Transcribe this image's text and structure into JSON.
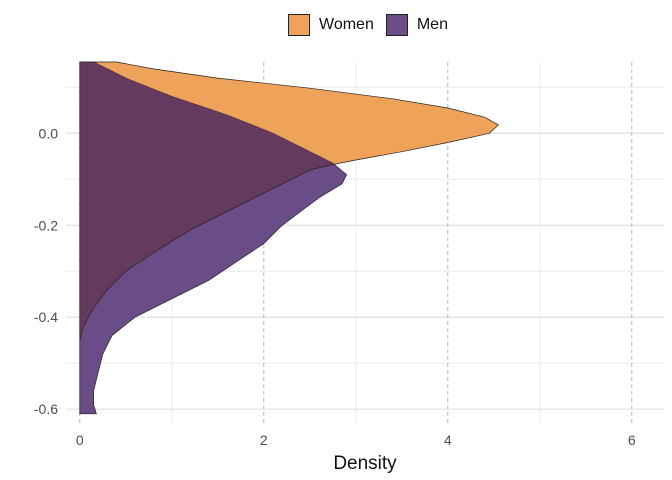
{
  "chart_data": {
    "type": "area",
    "orientation": "horizontal-density",
    "title": "",
    "xlabel": "Density",
    "ylabel": "",
    "xlim": [
      -0.15,
      6.35
    ],
    "ylim": [
      -0.63,
      0.155
    ],
    "x_ticks": [
      0,
      2,
      4,
      6
    ],
    "x_tick_labels": [
      "0",
      "2",
      "4",
      "6"
    ],
    "y_ticks": [
      0.0,
      -0.2,
      -0.4,
      -0.6
    ],
    "y_tick_labels": [
      "0.0",
      "-0.2",
      "-0.4",
      "-0.6"
    ],
    "grid": true,
    "grid_x_dashed": true,
    "legend_position": "top",
    "series": [
      {
        "name": "Women",
        "color": "#EFA35A",
        "overlap_color": "#663A5E",
        "points": [
          [
            0.0,
            0.155
          ],
          [
            0.4,
            0.155
          ],
          [
            0.8,
            0.14
          ],
          [
            1.5,
            0.12
          ],
          [
            2.5,
            0.098
          ],
          [
            3.4,
            0.075
          ],
          [
            4.0,
            0.055
          ],
          [
            4.4,
            0.035
          ],
          [
            4.55,
            0.018
          ],
          [
            4.45,
            0.0
          ],
          [
            4.0,
            -0.02
          ],
          [
            3.5,
            -0.04
          ],
          [
            3.0,
            -0.058
          ],
          [
            2.7,
            -0.07
          ],
          [
            2.5,
            -0.08
          ],
          [
            2.3,
            -0.1
          ],
          [
            2.0,
            -0.13
          ],
          [
            1.6,
            -0.17
          ],
          [
            1.2,
            -0.21
          ],
          [
            0.8,
            -0.26
          ],
          [
            0.5,
            -0.3
          ],
          [
            0.3,
            -0.34
          ],
          [
            0.15,
            -0.38
          ],
          [
            0.04,
            -0.42
          ],
          [
            0.0,
            -0.45
          ]
        ]
      },
      {
        "name": "Men",
        "color": "#6A4D86",
        "points": [
          [
            0.0,
            0.155
          ],
          [
            0.15,
            0.155
          ],
          [
            0.5,
            0.12
          ],
          [
            1.0,
            0.08
          ],
          [
            1.6,
            0.04
          ],
          [
            2.1,
            0.0
          ],
          [
            2.5,
            -0.04
          ],
          [
            2.75,
            -0.065
          ],
          [
            2.9,
            -0.09
          ],
          [
            2.85,
            -0.11
          ],
          [
            2.6,
            -0.14
          ],
          [
            2.4,
            -0.17
          ],
          [
            2.2,
            -0.2
          ],
          [
            2.0,
            -0.24
          ],
          [
            1.7,
            -0.28
          ],
          [
            1.4,
            -0.32
          ],
          [
            1.0,
            -0.36
          ],
          [
            0.6,
            -0.4
          ],
          [
            0.35,
            -0.44
          ],
          [
            0.25,
            -0.48
          ],
          [
            0.2,
            -0.52
          ],
          [
            0.15,
            -0.56
          ],
          [
            0.15,
            -0.59
          ],
          [
            0.18,
            -0.61
          ],
          [
            0.0,
            -0.61
          ]
        ]
      }
    ]
  }
}
